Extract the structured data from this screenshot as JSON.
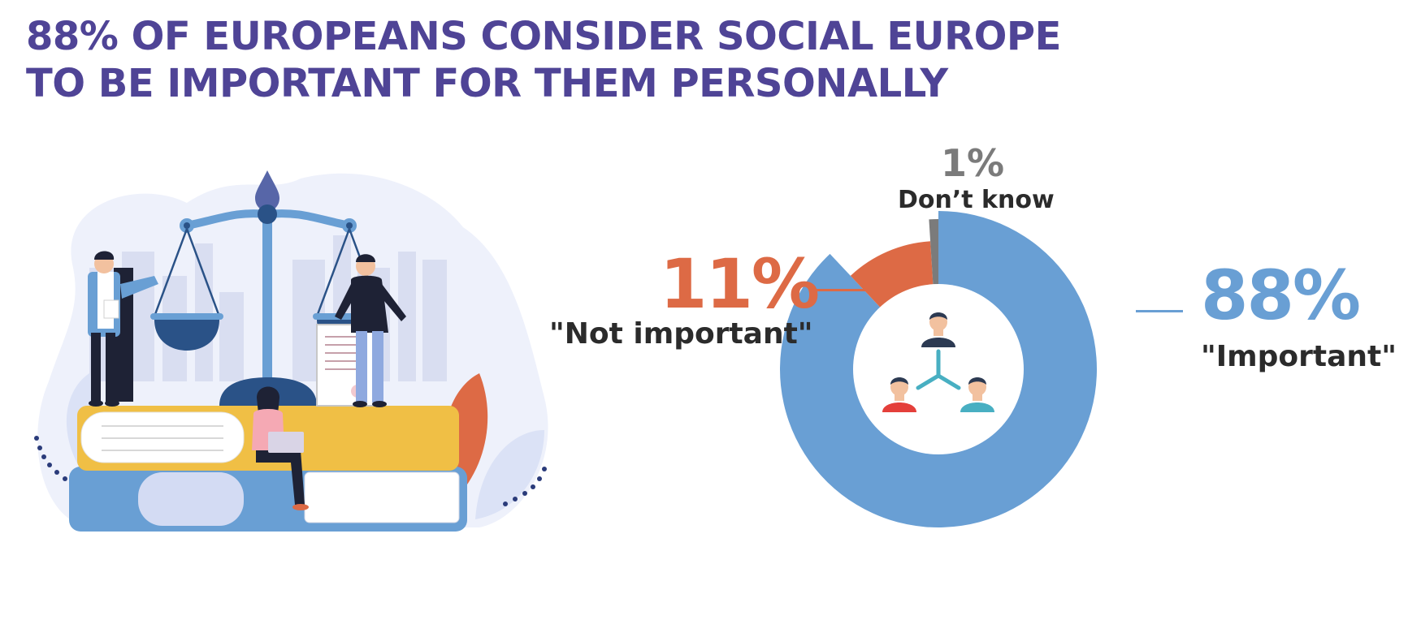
{
  "title": {
    "line1": "88% OF EUROPEANS CONSIDER SOCIAL EUROPE",
    "line2": "TO BE IMPORTANT FOR THEM PERSONALLY"
  },
  "colors": {
    "title": "#4f4496",
    "important": "#699fd4",
    "not_important": "#dd6a45",
    "dont_know": "#7b7b7b",
    "caption": "#2b2b2b"
  },
  "icons": {
    "illustration": "scales-of-justice-books-people-illustration",
    "donut_center": "people-network-icon"
  },
  "chart_data": {
    "type": "pie",
    "donut": true,
    "start": "top",
    "direction": "clockwise",
    "slices": [
      {
        "label": "\"Important\"",
        "value": 88,
        "display": "88%",
        "color": "#699fd4"
      },
      {
        "label": "\"Not important\"",
        "value": 11,
        "display": "11%",
        "color": "#dd6a45"
      },
      {
        "label": "Don’t know",
        "value": 1,
        "display": "1%",
        "color": "#7b7b7b"
      }
    ]
  }
}
